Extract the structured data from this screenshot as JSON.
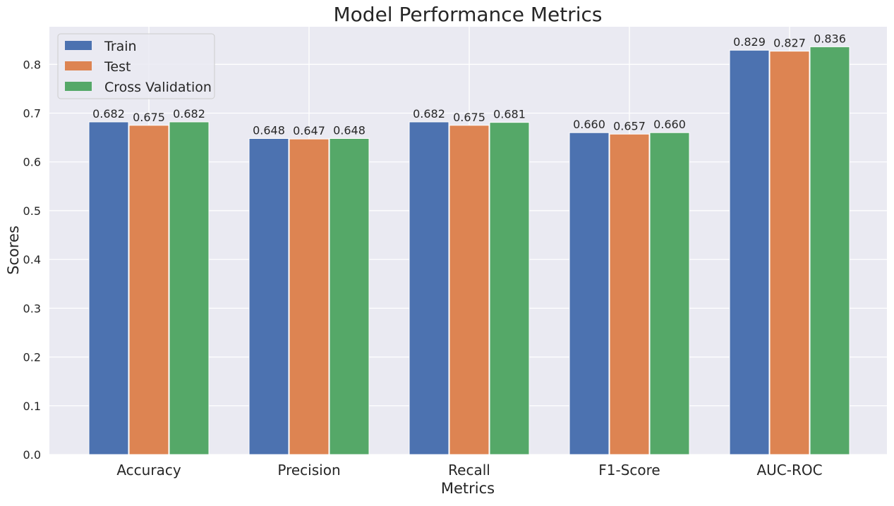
{
  "chart_data": {
    "type": "bar",
    "title": "Model Performance Metrics",
    "xlabel": "Metrics",
    "ylabel": "Scores",
    "categories": [
      "Accuracy",
      "Precision",
      "Recall",
      "F1-Score",
      "AUC-ROC"
    ],
    "series": [
      {
        "name": "Train",
        "color": "#4C72B0",
        "values": [
          0.682,
          0.648,
          0.682,
          0.66,
          0.829
        ],
        "labels": [
          "0.682",
          "0.648",
          "0.682",
          "0.660",
          "0.829"
        ]
      },
      {
        "name": "Test",
        "color": "#DD8452",
        "values": [
          0.675,
          0.647,
          0.675,
          0.657,
          0.827
        ],
        "labels": [
          "0.675",
          "0.647",
          "0.675",
          "0.657",
          "0.827"
        ]
      },
      {
        "name": "Cross Validation",
        "color": "#55A868",
        "values": [
          0.682,
          0.648,
          0.681,
          0.66,
          0.836
        ],
        "labels": [
          "0.682",
          "0.648",
          "0.681",
          "0.660",
          "0.836"
        ]
      }
    ],
    "ylim": [
      0,
      0.877
    ],
    "yticks": [
      "0.0",
      "0.1",
      "0.2",
      "0.3",
      "0.4",
      "0.5",
      "0.6",
      "0.7",
      "0.8"
    ],
    "grid": true,
    "legend": "top-left",
    "colors": {
      "plot_background": "#EAEAF2",
      "grid": "#FFFFFF"
    }
  }
}
